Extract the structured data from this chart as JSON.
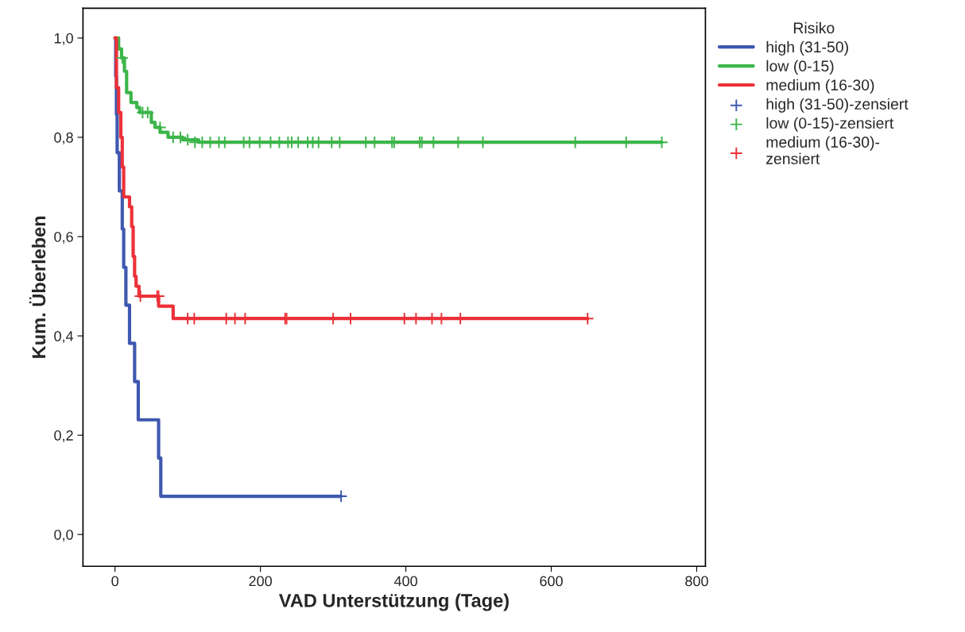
{
  "chart_data": {
    "type": "step",
    "xlabel": "VAD Unterstützung (Tage)",
    "ylabel": "Kum. Überleben",
    "legend_title": "Risiko",
    "legend": "right",
    "grid": false,
    "xlim": [
      -44,
      812
    ],
    "xticks": [
      0,
      200,
      400,
      600,
      800
    ],
    "ylim": [
      -0.064,
      1.06
    ],
    "yticks": [
      {
        "value": 0.0,
        "label": "0,0"
      },
      {
        "value": 0.2,
        "label": "0,2"
      },
      {
        "value": 0.4,
        "label": "0,4"
      },
      {
        "value": 0.6,
        "label": "0,6"
      },
      {
        "value": 0.8,
        "label": "0,8"
      },
      {
        "value": 1.0,
        "label": "1,0"
      }
    ],
    "series": [
      {
        "name": "high (31-50)",
        "color": "#3f58b0",
        "x": [
          0,
          1,
          2,
          3,
          6,
          10,
          12,
          15,
          20,
          27,
          32,
          60,
          63,
          311
        ],
        "values": [
          1.0,
          0.923,
          0.846,
          0.769,
          0.692,
          0.615,
          0.538,
          0.462,
          0.385,
          0.308,
          0.231,
          0.154,
          0.077,
          0.077
        ]
      },
      {
        "name": "low (0-15)",
        "color": "#3cb54a",
        "x": [
          0,
          5,
          9,
          13,
          16,
          22,
          30,
          34,
          50,
          55,
          62,
          73,
          93,
          115,
          752
        ],
        "values": [
          1.0,
          0.978,
          0.96,
          0.933,
          0.89,
          0.87,
          0.86,
          0.85,
          0.83,
          0.82,
          0.81,
          0.8,
          0.795,
          0.79,
          0.79
        ]
      },
      {
        "name": "medium (16-30)",
        "color": "#ec3139",
        "x": [
          0,
          2,
          5,
          8,
          10,
          12,
          20,
          23,
          25,
          27,
          29,
          33,
          60,
          80,
          650
        ],
        "values": [
          1.0,
          0.9,
          0.85,
          0.8,
          0.74,
          0.68,
          0.66,
          0.62,
          0.56,
          0.52,
          0.5,
          0.48,
          0.46,
          0.435,
          0.435
        ]
      },
      {
        "name": "high (31-50)-zensiert",
        "type": "scatter",
        "marker": "cross",
        "color": "#3f58b0",
        "x": [
          311
        ],
        "values": [
          0.077
        ]
      },
      {
        "name": "low (0-15)-zensiert",
        "type": "scatter",
        "marker": "cross",
        "color": "#3cb54a",
        "x": [
          10,
          38,
          45,
          62,
          80,
          90,
          100,
          110,
          120,
          131,
          143,
          151,
          177,
          185,
          199,
          214,
          226,
          238,
          243,
          252,
          265,
          272,
          280,
          298,
          309,
          345,
          357,
          381,
          384,
          419,
          422,
          438,
          472,
          506,
          633,
          703,
          752
        ],
        "values": [
          0.96,
          0.85,
          0.85,
          0.82,
          0.8,
          0.8,
          0.795,
          0.79,
          0.79,
          0.79,
          0.79,
          0.79,
          0.79,
          0.79,
          0.79,
          0.79,
          0.79,
          0.79,
          0.79,
          0.79,
          0.79,
          0.79,
          0.79,
          0.79,
          0.79,
          0.79,
          0.79,
          0.79,
          0.79,
          0.79,
          0.79,
          0.79,
          0.79,
          0.79,
          0.79,
          0.79,
          0.79
        ]
      },
      {
        "name": "medium (16-30)-\nzensiert",
        "type": "scatter",
        "marker": "cross",
        "color": "#ec3139",
        "x": [
          35,
          58,
          60,
          100,
          109,
          153,
          165,
          179,
          234,
          236,
          300,
          324,
          398,
          414,
          436,
          449,
          475,
          650
        ],
        "values": [
          0.48,
          0.48,
          0.48,
          0.435,
          0.435,
          0.435,
          0.435,
          0.435,
          0.435,
          0.435,
          0.435,
          0.435,
          0.435,
          0.435,
          0.435,
          0.435,
          0.435,
          0.435
        ]
      }
    ]
  }
}
